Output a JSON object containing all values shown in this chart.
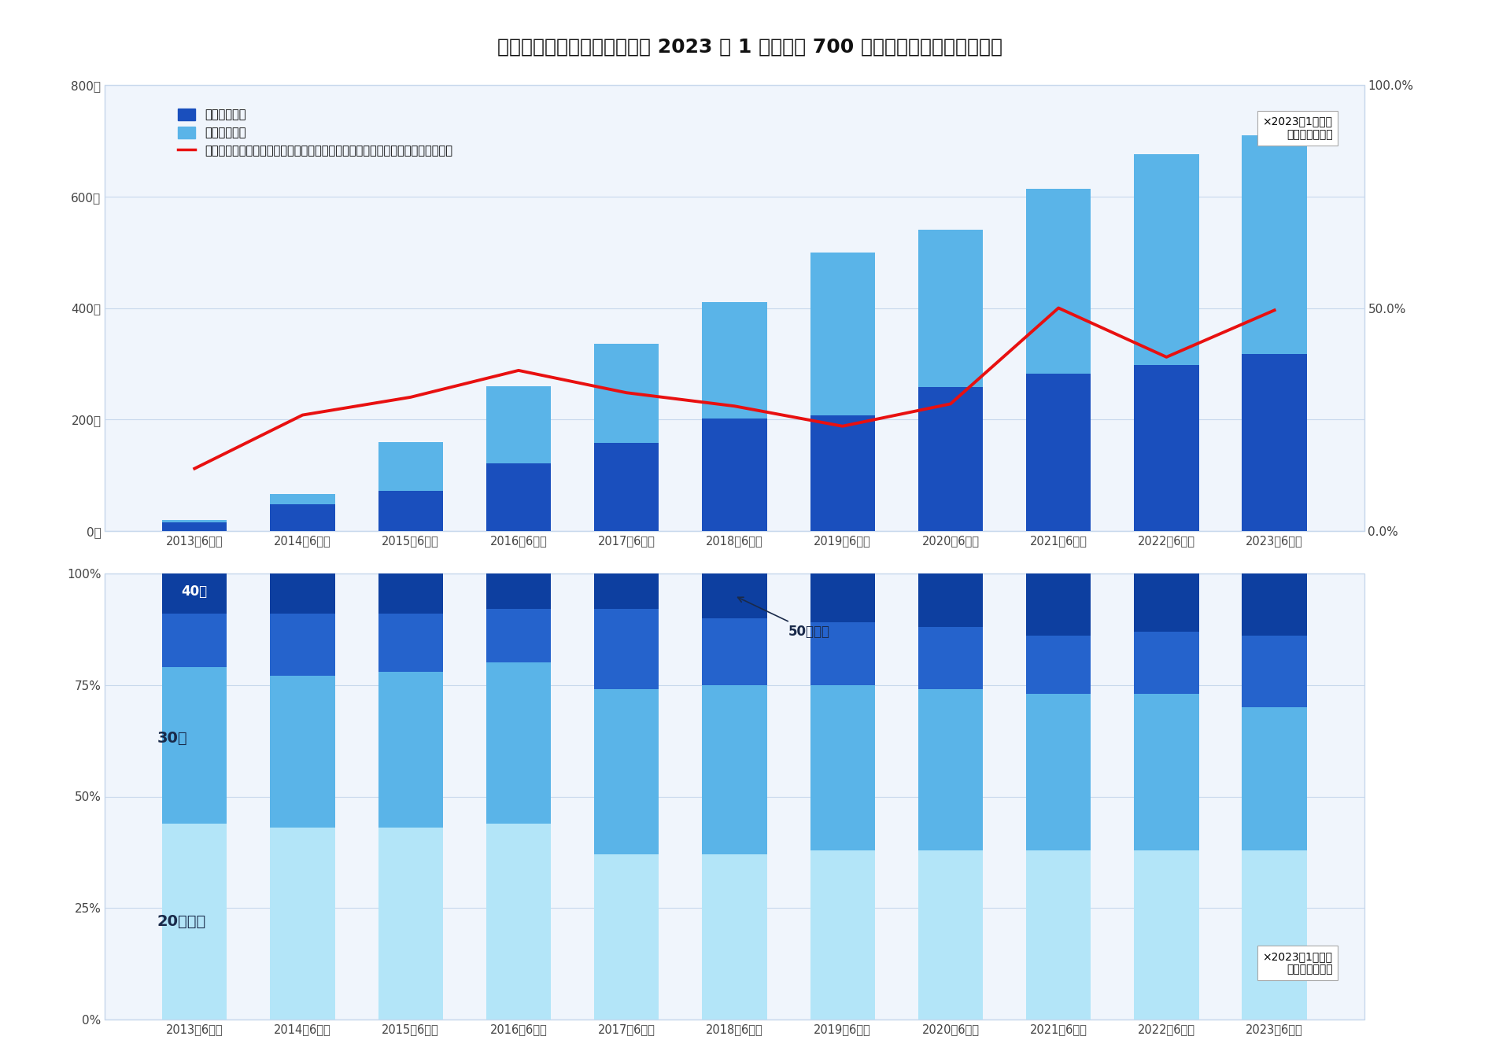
{
  "title": "「ロジスカット」への入社は 2023 年 1 月までに 700 名を突破、年代もさまざま",
  "categories": [
    "2013年6月期",
    "2014年6月期",
    "2015年6月期",
    "2016年6月期",
    "2017年6月期",
    "2018年6月期",
    "2019年6月期",
    "2020年6月期",
    "2021年6月期",
    "2022年6月期",
    "2023年6月期"
  ],
  "male_cumulative": [
    15,
    48,
    72,
    122,
    158,
    202,
    208,
    258,
    282,
    298,
    318
  ],
  "female_cumulative": [
    5,
    18,
    88,
    138,
    178,
    208,
    292,
    282,
    332,
    378,
    392
  ],
  "line_ratio": [
    14.0,
    26.0,
    30.0,
    36.0,
    31.0,
    28.0,
    23.5,
    28.5,
    50.0,
    39.0,
    49.5
  ],
  "bar_male_color": "#1a4fbd",
  "bar_female_color": "#5ab4e8",
  "line_color": "#e81010",
  "ylim_left": [
    0,
    800
  ],
  "ylim_right": [
    0,
    100
  ],
  "yticks_left": [
    0,
    200,
    400,
    600,
    800
  ],
  "ytick_labels_left": [
    "0人",
    "200人",
    "400人",
    "600人",
    "800人"
  ],
  "ytick_labels_right": [
    "0.0%",
    "50.0%",
    "100.0%"
  ],
  "legend1": "男性入社累計",
  "legend2": "女性入社累計",
  "legend3": "採用数に占めるロジスカットプロフェッショナルスタイリストスクール入社割合",
  "note_text1": "×2023年1月まで\nでの入社を集計",
  "age_20_below": [
    44,
    43,
    43,
    44,
    37,
    37,
    38,
    38,
    38,
    38,
    38
  ],
  "age_30s": [
    35,
    34,
    35,
    36,
    37,
    38,
    37,
    36,
    35,
    35,
    32
  ],
  "age_40s": [
    12,
    14,
    13,
    12,
    18,
    15,
    14,
    14,
    13,
    14,
    16
  ],
  "age_50plus": [
    9,
    9,
    9,
    8,
    8,
    10,
    11,
    12,
    14,
    13,
    14
  ],
  "age_20_color": "#b3e5f8",
  "age_30_color": "#5ab4e8",
  "age_40_color": "#2563cc",
  "age_50_color": "#0d3fa0",
  "label_20": "20代以下",
  "label_30": "30代",
  "label_40": "40代",
  "label_50": "50代以上",
  "note_text2": "×2023年1月まで\nでの入社を集計",
  "bg_color": "#ffffff",
  "chart_bg": "#f0f5fc",
  "grid_color": "#c8d8ec"
}
